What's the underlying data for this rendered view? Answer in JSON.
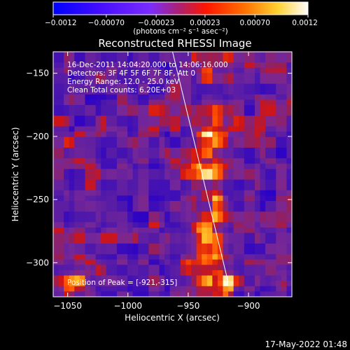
{
  "chart_data": {
    "type": "heatmap",
    "title": "Reconstructed RHESSI Image",
    "xlabel": "Heliocentric X (arcsec)",
    "ylabel": "Heliocentric Y (arcsec)",
    "xlim": [
      -1062,
      -864
    ],
    "ylim": [
      -327,
      -133
    ],
    "x_ticks": [
      -1050,
      -1000,
      -950,
      -900
    ],
    "y_ticks": [
      -150,
      -200,
      -250,
      -300
    ],
    "x_tick_labels": [
      "−1050",
      "−1000",
      "−950",
      "−900"
    ],
    "y_tick_labels": [
      "−150",
      "−200",
      "−250",
      "−300"
    ],
    "colorbar": {
      "range": [
        -0.0012,
        0.0012
      ],
      "ticks": [
        -0.0012,
        -0.0007,
        -0.00023,
        0.00023,
        0.0007,
        0.0012
      ],
      "tick_labels": [
        "−0.0012",
        "−0.00070",
        "−0.00023",
        "0.00023",
        "0.00070",
        "0.0012"
      ],
      "unit_label": "(photons cm⁻² s⁻¹ asec⁻²)",
      "colors": [
        "#0000ff",
        "#3a00ff",
        "#7a2cff",
        "#c02080",
        "#ff1a00",
        "#ff7a00",
        "#ffd840",
        "#ffffff"
      ]
    },
    "grid": false,
    "limb_line": {
      "x": [
        -963,
        -917
      ],
      "y": [
        -133,
        -315
      ]
    },
    "peak": {
      "x": -921,
      "y": -315
    },
    "annotations": [
      "16-Dec-2011 14:04:20.000 to 14:06:16.000",
      "Detectors: 3F 4F 5F 6F 7F 8F, Att 0",
      "Energy Range: 12.0 - 25.0 keV",
      "Clean     Total counts: 6.20E+03"
    ],
    "peak_label": "Position of Peak = [-921,-315]",
    "footer_timestamp": "17-May-2022 01:48"
  }
}
